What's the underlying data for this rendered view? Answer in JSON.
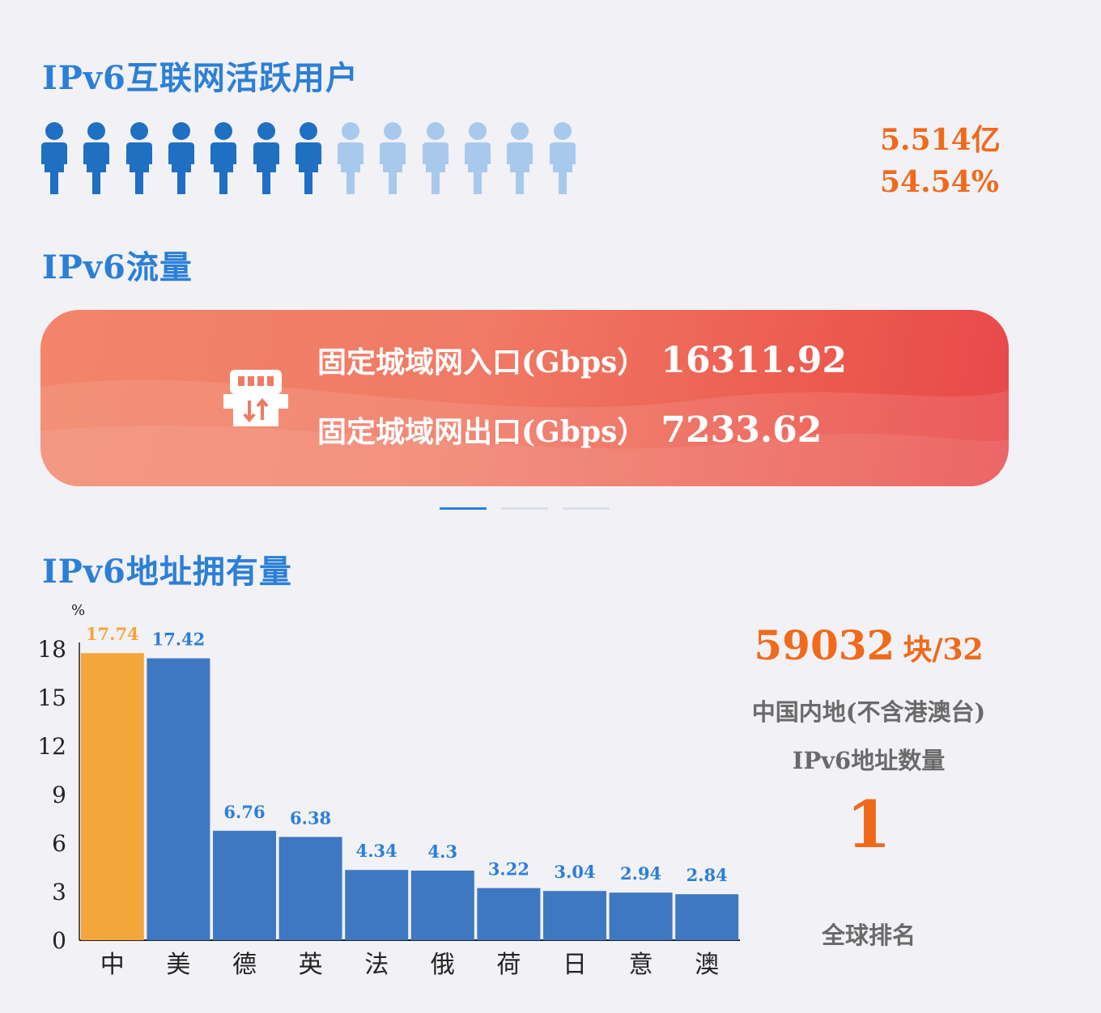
{
  "users": {
    "title": "IPv6互联网活跃用户",
    "count": "5.514亿",
    "percent": "54.54%",
    "icons_total": 13,
    "icons_active": 7,
    "colors": {
      "active": "#1f6fc2",
      "inactive": "#a9c9ec"
    }
  },
  "traffic": {
    "title": "IPv6流量",
    "in_label": "固定城域网入口(Gbps）",
    "in_value": "16311.92",
    "out_label": "固定城域网出口(Gbps）",
    "out_value": "7233.62",
    "icon": "router-updown-icon"
  },
  "address": {
    "title": "IPv6地址拥有量",
    "count_value": "59032",
    "count_unit": "块/32",
    "desc_line1": "中国内地(不含港澳台)",
    "desc_line2": "IPv6地址数量",
    "rank_value": "1",
    "rank_label": "全球排名"
  },
  "chart_data": {
    "type": "bar",
    "title": "",
    "xlabel": "",
    "ylabel": "%",
    "categories": [
      "中",
      "美",
      "德",
      "英",
      "法",
      "俄",
      "荷",
      "日",
      "意",
      "澳"
    ],
    "values": [
      17.74,
      17.42,
      6.76,
      6.38,
      4.34,
      4.3,
      3.22,
      3.04,
      2.94,
      2.84
    ],
    "value_labels": [
      "17.74",
      "17.42",
      "6.76",
      "6.38",
      "4.34",
      "4.3",
      "3.22",
      "3.04",
      "2.94",
      "2.84"
    ],
    "ylim": [
      0,
      18
    ],
    "yticks": [
      0,
      3,
      6,
      9,
      12,
      15,
      18
    ],
    "highlight_index": 0,
    "colors": {
      "bar": "#3f78c2",
      "highlight": "#f4a63a",
      "label": "#2c7fd6",
      "highlight_label": "#f4a63a"
    },
    "grid": false,
    "legend": "none"
  }
}
